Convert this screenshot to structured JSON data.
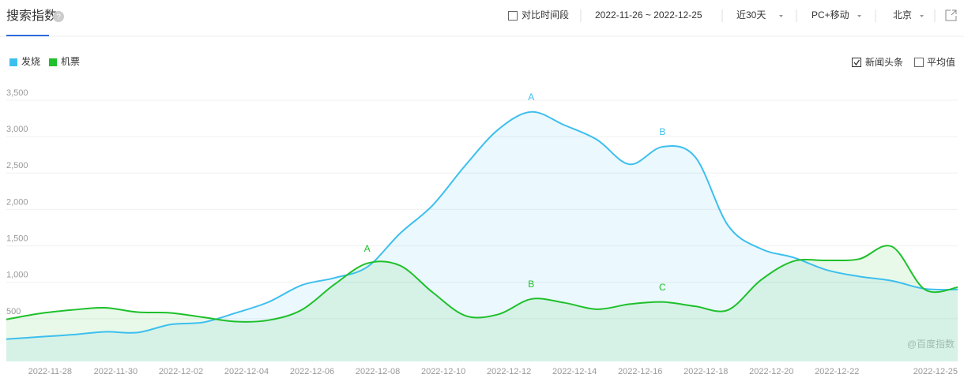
{
  "header": {
    "title": "搜索指数",
    "compare": "对比时间段",
    "date_range": "2022-11-26 ~ 2022-12-25",
    "period": "近30天",
    "device": "PC+移动",
    "region": "北京"
  },
  "options": {
    "news": "新闻头条",
    "average": "平均值"
  },
  "watermark": "@百度指数",
  "chart_data": {
    "type": "line",
    "categories": [
      null,
      null,
      "2022-11-28",
      null,
      "2022-11-30",
      null,
      "2022-12-02",
      null,
      "2022-12-04",
      null,
      "2022-12-06",
      null,
      "2022-12-08",
      null,
      "2022-12-10",
      null,
      "2022-12-12",
      null,
      "2022-12-14",
      null,
      "2022-12-16",
      null,
      "2022-12-18",
      null,
      "2022-12-20",
      null,
      "2022-12-22",
      null,
      null,
      "2022-12-25"
    ],
    "series": [
      {
        "name": "发烧",
        "color": "#3dbfee",
        "values": [
          220,
          250,
          280,
          320,
          310,
          420,
          450,
          580,
          730,
          960,
          1060,
          1210,
          1670,
          2060,
          2610,
          3100,
          3340,
          3160,
          2960,
          2620,
          2860,
          2720,
          1780,
          1460,
          1340,
          1170,
          1080,
          1020,
          910,
          900
        ],
        "markers": [
          null,
          null,
          null,
          null,
          null,
          null,
          null,
          null,
          null,
          null,
          null,
          null,
          null,
          null,
          null,
          null,
          "A",
          null,
          null,
          null,
          "B",
          null,
          null,
          null,
          null,
          null,
          null,
          null,
          null,
          null
        ]
      },
      {
        "name": "机票",
        "color": "#1ec02b",
        "values": [
          490,
          570,
          620,
          650,
          590,
          580,
          520,
          460,
          480,
          620,
          970,
          1260,
          1230,
          860,
          540,
          560,
          770,
          720,
          630,
          700,
          730,
          670,
          620,
          1030,
          1290,
          1300,
          1320,
          1490,
          900,
          930
        ],
        "markers": [
          null,
          null,
          null,
          null,
          null,
          null,
          null,
          null,
          null,
          null,
          null,
          "A",
          null,
          null,
          null,
          null,
          "B",
          null,
          null,
          null,
          "C",
          null,
          null,
          null,
          null,
          null,
          null,
          null,
          null,
          null
        ]
      }
    ],
    "ylim": [
      0,
      3500
    ],
    "yticks": [
      500,
      {
        "value": 1000,
        "label": "1,000"
      },
      {
        "value": 1500,
        "label": "1,500"
      },
      {
        "value": 2000,
        "label": "2,000"
      },
      {
        "value": 2500,
        "label": "2,500"
      },
      {
        "value": 3000,
        "label": "3,000"
      },
      {
        "value": 3500,
        "label": "3,500"
      }
    ],
    "grid": true
  }
}
